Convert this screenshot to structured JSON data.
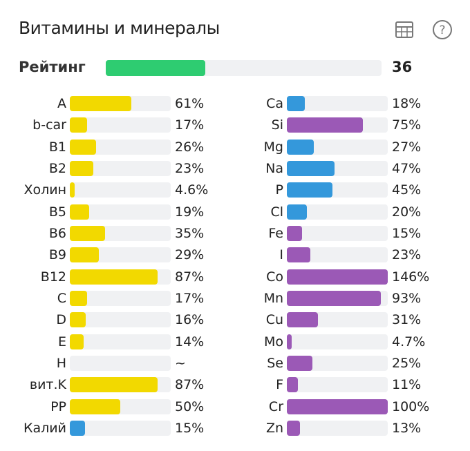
{
  "header": {
    "title": "Витамины и минералы",
    "icons": [
      "table-icon",
      "help-icon"
    ]
  },
  "rating": {
    "label": "Рейтинг",
    "value": "36",
    "fill_percent": 36,
    "color": "#2ecc71"
  },
  "colors": {
    "vitamin": "#f2d900",
    "blue": "#3498db",
    "purple": "#9b59b6",
    "track": "#f0f1f3"
  },
  "left": [
    {
      "label": "A",
      "value": "61%",
      "pct": 61,
      "color": "#f2d900"
    },
    {
      "label": "b-car",
      "value": "17%",
      "pct": 17,
      "color": "#f2d900"
    },
    {
      "label": "B1",
      "value": "26%",
      "pct": 26,
      "color": "#f2d900"
    },
    {
      "label": "B2",
      "value": "23%",
      "pct": 23,
      "color": "#f2d900"
    },
    {
      "label": "Холин",
      "value": "4.6%",
      "pct": 4.6,
      "color": "#f2d900"
    },
    {
      "label": "B5",
      "value": "19%",
      "pct": 19,
      "color": "#f2d900"
    },
    {
      "label": "B6",
      "value": "35%",
      "pct": 35,
      "color": "#f2d900"
    },
    {
      "label": "B9",
      "value": "29%",
      "pct": 29,
      "color": "#f2d900"
    },
    {
      "label": "B12",
      "value": "87%",
      "pct": 87,
      "color": "#f2d900"
    },
    {
      "label": "C",
      "value": "17%",
      "pct": 17,
      "color": "#f2d900"
    },
    {
      "label": "D",
      "value": "16%",
      "pct": 16,
      "color": "#f2d900"
    },
    {
      "label": "E",
      "value": "14%",
      "pct": 14,
      "color": "#f2d900"
    },
    {
      "label": "H",
      "value": "~",
      "pct": 0,
      "color": "#f2d900"
    },
    {
      "label": "вит.K",
      "value": "87%",
      "pct": 87,
      "color": "#f2d900"
    },
    {
      "label": "PP",
      "value": "50%",
      "pct": 50,
      "color": "#f2d900"
    },
    {
      "label": "Калий",
      "value": "15%",
      "pct": 15,
      "color": "#3498db"
    }
  ],
  "right": [
    {
      "label": "Ca",
      "value": "18%",
      "pct": 18,
      "color": "#3498db"
    },
    {
      "label": "Si",
      "value": "75%",
      "pct": 75,
      "color": "#9b59b6"
    },
    {
      "label": "Mg",
      "value": "27%",
      "pct": 27,
      "color": "#3498db"
    },
    {
      "label": "Na",
      "value": "47%",
      "pct": 47,
      "color": "#3498db"
    },
    {
      "label": "P",
      "value": "45%",
      "pct": 45,
      "color": "#3498db"
    },
    {
      "label": "Cl",
      "value": "20%",
      "pct": 20,
      "color": "#3498db"
    },
    {
      "label": "Fe",
      "value": "15%",
      "pct": 15,
      "color": "#9b59b6"
    },
    {
      "label": "I",
      "value": "23%",
      "pct": 23,
      "color": "#9b59b6"
    },
    {
      "label": "Co",
      "value": "146%",
      "pct": 146,
      "color": "#9b59b6"
    },
    {
      "label": "Mn",
      "value": "93%",
      "pct": 93,
      "color": "#9b59b6"
    },
    {
      "label": "Cu",
      "value": "31%",
      "pct": 31,
      "color": "#9b59b6"
    },
    {
      "label": "Mo",
      "value": "4.7%",
      "pct": 4.7,
      "color": "#9b59b6"
    },
    {
      "label": "Se",
      "value": "25%",
      "pct": 25,
      "color": "#9b59b6"
    },
    {
      "label": "F",
      "value": "11%",
      "pct": 11,
      "color": "#9b59b6"
    },
    {
      "label": "Cr",
      "value": "100%",
      "pct": 100,
      "color": "#9b59b6"
    },
    {
      "label": "Zn",
      "value": "13%",
      "pct": 13,
      "color": "#9b59b6"
    }
  ]
}
